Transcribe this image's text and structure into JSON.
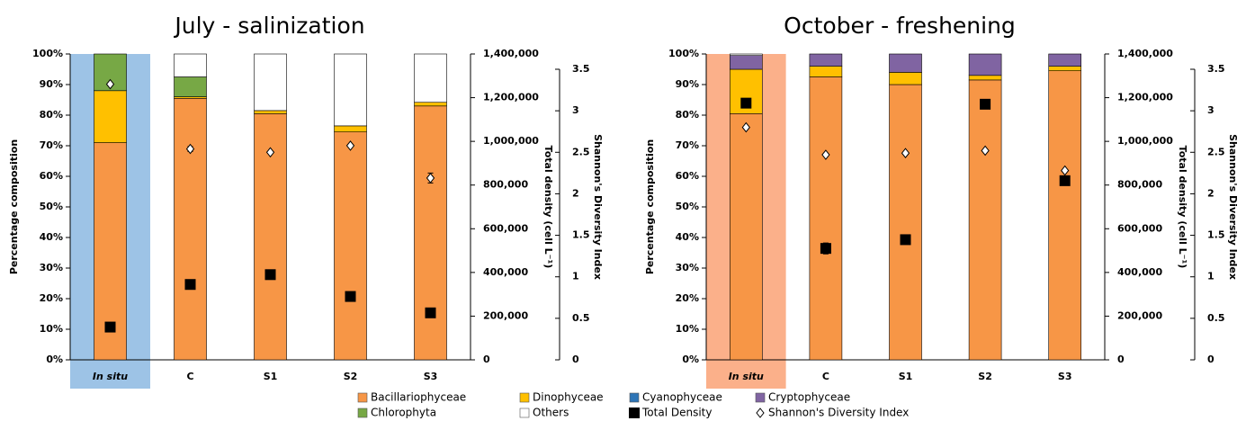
{
  "chart_data": [
    {
      "type": "bar",
      "stacked": true,
      "title": "July - salinization",
      "categories": [
        "In situ",
        "C",
        "S1",
        "S2",
        "S3"
      ],
      "highlight_color": "#9dc3e6",
      "ylabel": "Percentage composition",
      "y2label": "Total density (cell L⁻¹)",
      "y3label": "Shannon's Diversity Index",
      "ylim": [
        0,
        100
      ],
      "yticks": [
        {
          "value": 0,
          "label": "0%"
        },
        {
          "value": 10,
          "label": "10%"
        },
        {
          "value": 20,
          "label": "20%"
        },
        {
          "value": 30,
          "label": "30%"
        },
        {
          "value": 40,
          "label": "40%"
        },
        {
          "value": 50,
          "label": "50%"
        },
        {
          "value": 60,
          "label": "60%"
        },
        {
          "value": 70,
          "label": "70%"
        },
        {
          "value": 80,
          "label": "80%"
        },
        {
          "value": 90,
          "label": "90%"
        },
        {
          "value": 100,
          "label": "100%"
        }
      ],
      "y2lim": [
        0,
        1400000
      ],
      "y2ticks": [
        0,
        {
          "value": 200000,
          "label": "200,000"
        },
        {
          "value": 400000,
          "label": "400,000"
        },
        {
          "value": 600000,
          "label": "600,000"
        },
        {
          "value": 800000,
          "label": "800,000"
        },
        {
          "value": 1000000,
          "label": "1,000,000"
        },
        {
          "value": 1200000,
          "label": "1,200,000"
        },
        {
          "value": 1400000,
          "label": "1,400,000"
        }
      ],
      "y3lim": [
        0,
        3.5
      ],
      "y3ticks": [
        0,
        0.5,
        1,
        1.5,
        2,
        2.5,
        3,
        3.5
      ],
      "series": [
        {
          "name": "Bacillariophyceae",
          "color": "#f79646",
          "values": [
            71,
            85.5,
            80.5,
            74.5,
            83
          ]
        },
        {
          "name": "Dinophyceae",
          "color": "#ffc000",
          "values": [
            17,
            0.5,
            1,
            2,
            1.2
          ]
        },
        {
          "name": "Cyanophyceae",
          "color": "#2e75b6",
          "values": [
            0,
            0,
            0,
            0,
            0
          ]
        },
        {
          "name": "Cryptophyceae",
          "color": "#8064a2",
          "values": [
            0,
            0,
            0,
            0,
            0
          ]
        },
        {
          "name": "Chlorophyta",
          "color": "#77a845",
          "values": [
            12,
            6.5,
            0,
            0,
            0
          ]
        },
        {
          "name": "Others",
          "color": "#ffffff",
          "values": [
            0,
            7.5,
            18.5,
            23.5,
            15.8
          ]
        },
        {
          "name": "Total Density",
          "color": "#000000",
          "marker": "square",
          "axis": "y2",
          "values": [
            150000,
            345000,
            390000,
            290000,
            215000
          ]
        },
        {
          "name": "Shannon's Diversity Index",
          "color": "#ffffff",
          "marker": "diamond",
          "axis": "y3",
          "values": [
            3.32,
            2.54,
            2.5,
            2.58,
            2.19
          ],
          "errors": [
            null,
            0.03,
            null,
            null,
            0.06
          ]
        }
      ]
    },
    {
      "type": "bar",
      "stacked": true,
      "title": "October - freshening",
      "categories": [
        "In situ",
        "C",
        "S1",
        "S2",
        "S3"
      ],
      "highlight_color": "#fbb08a",
      "ylabel": "Percentage composition",
      "y2label": "Total density (cell L⁻¹)",
      "y3label": "Shannon's Diversity Index",
      "ylim": [
        0,
        100
      ],
      "yticks": [
        {
          "value": 0,
          "label": "0%"
        },
        {
          "value": 10,
          "label": "10%"
        },
        {
          "value": 20,
          "label": "20%"
        },
        {
          "value": 30,
          "label": "30%"
        },
        {
          "value": 40,
          "label": "40%"
        },
        {
          "value": 50,
          "label": "50%"
        },
        {
          "value": 60,
          "label": "60%"
        },
        {
          "value": 70,
          "label": "70%"
        },
        {
          "value": 80,
          "label": "80%"
        },
        {
          "value": 90,
          "label": "90%"
        },
        {
          "value": 100,
          "label": "100%"
        }
      ],
      "y2lim": [
        0,
        1400000
      ],
      "y2ticks": [
        0,
        {
          "value": 200000,
          "label": "200,000"
        },
        {
          "value": 400000,
          "label": "400,000"
        },
        {
          "value": 600000,
          "label": "600,000"
        },
        {
          "value": 800000,
          "label": "800,000"
        },
        {
          "value": 1000000,
          "label": "1,000,000"
        },
        {
          "value": 1200000,
          "label": "1,200,000"
        },
        {
          "value": 1400000,
          "label": "1,400,000"
        }
      ],
      "y3lim": [
        0,
        3.5
      ],
      "y3ticks": [
        0,
        0.5,
        1,
        1.5,
        2,
        2.5,
        3,
        3.5
      ],
      "series": [
        {
          "color": "#f79646",
          "values": [
            80.5,
            92.5,
            90,
            91.5,
            94.5
          ]
        },
        {
          "color": "#ffc000",
          "values": [
            14.5,
            3.5,
            4,
            1.5,
            1.5
          ]
        },
        {
          "color": "#2e75b6",
          "values": [
            0,
            0,
            0,
            0,
            0
          ]
        },
        {
          "color": "#8064a2",
          "values": [
            4.5,
            4,
            6,
            7,
            4
          ]
        },
        {
          "color": "#77a845",
          "values": [
            0,
            0,
            0,
            0,
            0
          ]
        },
        {
          "color": "#ffffff",
          "values": [
            0.5,
            0,
            0,
            0,
            0
          ]
        },
        {
          "color": "#000000",
          "marker": "square",
          "axis": "y2",
          "values": [
            1175000,
            510000,
            550000,
            1170000,
            820000
          ],
          "errors": [
            null,
            25000,
            20000,
            null,
            null
          ]
        },
        {
          "color": "#ffffff",
          "marker": "diamond",
          "axis": "y3",
          "values": [
            2.8,
            2.47,
            2.49,
            2.52,
            2.28
          ]
        }
      ]
    }
  ]
}
